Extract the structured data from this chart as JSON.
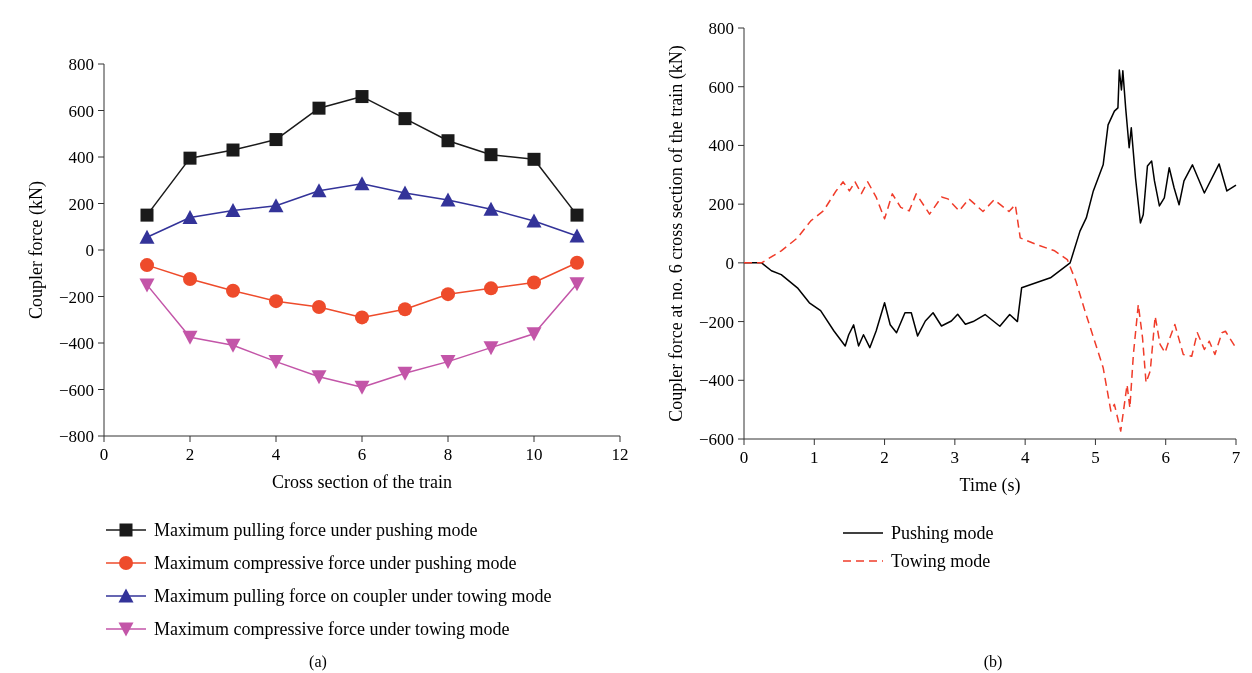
{
  "chart_data": [
    {
      "type": "line",
      "xlabel": "Cross section of the train",
      "ylabel": "Coupler force (kN)",
      "annotations": [
        "(a)"
      ],
      "x": [
        1,
        2,
        3,
        4,
        5,
        6,
        7,
        8,
        9,
        10,
        11
      ],
      "xlim": [
        0,
        12
      ],
      "xticks": [
        0,
        2,
        4,
        6,
        8,
        10,
        12
      ],
      "ylim": [
        -800,
        800
      ],
      "yticks": [
        {
          "value": -800,
          "label": "−800"
        },
        {
          "value": -600,
          "label": "−600"
        },
        {
          "value": -400,
          "label": "−400"
        },
        {
          "value": -200,
          "label": "−200"
        },
        0,
        200,
        400,
        600,
        800
      ],
      "legend": "bottom",
      "grid": false,
      "series": [
        {
          "name": "Maximum pulling force under pushing mode",
          "color": "#1a1a1a",
          "marker": "square",
          "values": [
            150,
            395,
            430,
            475,
            610,
            660,
            565,
            470,
            410,
            390,
            150
          ]
        },
        {
          "name": "Maximum compressive force under pushing mode",
          "color": "#ee4b2b",
          "marker": "circle",
          "values": [
            -65,
            -125,
            -175,
            -220,
            -245,
            -290,
            -255,
            -190,
            -165,
            -140,
            -55
          ]
        },
        {
          "name": "Maximum pulling force on coupler under towing mode",
          "color": "#333399",
          "marker": "triangle",
          "values": [
            55,
            140,
            170,
            190,
            255,
            285,
            245,
            215,
            175,
            125,
            60
          ]
        },
        {
          "name": "Maximum compressive force under towing mode",
          "color": "#c355a8",
          "marker": "triangle-down",
          "values": [
            -150,
            -375,
            -410,
            -480,
            -545,
            -590,
            -530,
            -480,
            -420,
            -360,
            -145
          ]
        }
      ]
    },
    {
      "type": "line",
      "xlabel": "Time (s)",
      "ylabel": "Coupler force at no. 6 cross section of the train (kN)",
      "annotations": [
        "(b)"
      ],
      "xlim": [
        0,
        7
      ],
      "xticks": [
        0,
        1,
        2,
        3,
        4,
        5,
        6,
        7
      ],
      "ylim": [
        -600,
        800
      ],
      "yticks": [
        {
          "value": -600,
          "label": "−600"
        },
        {
          "value": -400,
          "label": "−400"
        },
        {
          "value": -200,
          "label": "−200"
        },
        0,
        200,
        400,
        600,
        800
      ],
      "legend": "bottom",
      "grid": false,
      "marker": "none",
      "series": [
        {
          "name": "Pushing mode",
          "color": "#000000",
          "line_style": "solid",
          "x": [
            0,
            0.25,
            0.39,
            0.53,
            0.76,
            0.93,
            1.09,
            1.28,
            1.44,
            1.49,
            1.56,
            1.63,
            1.7,
            1.79,
            1.88,
            2.0,
            2.08,
            2.17,
            2.29,
            2.38,
            2.47,
            2.58,
            2.69,
            2.81,
            2.95,
            3.04,
            3.15,
            3.26,
            3.43,
            3.64,
            3.78,
            3.89,
            3.95,
            4.36,
            4.64,
            4.78,
            4.87,
            4.97,
            5.11,
            5.18,
            5.27,
            5.32,
            5.34,
            5.37,
            5.39,
            5.43,
            5.48,
            5.51,
            5.57,
            5.64,
            5.68,
            5.74,
            5.8,
            5.84,
            5.91,
            5.98,
            6.05,
            6.12,
            6.19,
            6.26,
            6.38,
            6.55,
            6.76,
            6.87,
            7.0
          ],
          "values": [
            0,
            0,
            -27,
            -40,
            -85,
            -136,
            -163,
            -232,
            -283,
            -245,
            -211,
            -283,
            -245,
            -289,
            -232,
            -136,
            -211,
            -238,
            -170,
            -170,
            -249,
            -198,
            -170,
            -215,
            -198,
            -175,
            -209,
            -200,
            -176,
            -216,
            -176,
            -200,
            -85,
            -51,
            0,
            108,
            153,
            245,
            334,
            470,
            517,
            528,
            657,
            589,
            654,
            528,
            392,
            460,
            290,
            136,
            164,
            330,
            347,
            279,
            194,
            221,
            324,
            255,
            198,
            279,
            334,
            238,
            337,
            245,
            265
          ]
        },
        {
          "name": "Towing mode",
          "color": "#f03c2a",
          "line_style": "dashed",
          "x": [
            0,
            0.25,
            0.53,
            0.76,
            0.95,
            1.13,
            1.31,
            1.41,
            1.5,
            1.58,
            1.67,
            1.76,
            1.88,
            2.0,
            2.11,
            2.23,
            2.35,
            2.45,
            2.64,
            2.81,
            2.9,
            3.06,
            3.2,
            3.4,
            3.56,
            3.77,
            3.86,
            3.93,
            4.18,
            4.42,
            4.6,
            4.72,
            4.85,
            5.11,
            5.22,
            5.27,
            5.36,
            5.45,
            5.49,
            5.54,
            5.61,
            5.67,
            5.72,
            5.78,
            5.85,
            5.92,
            5.99,
            6.06,
            6.13,
            6.25,
            6.37,
            6.45,
            6.55,
            6.62,
            6.7,
            6.8,
            6.85,
            7.0
          ],
          "values": [
            0,
            0,
            41,
            85,
            143,
            177,
            245,
            276,
            245,
            276,
            236,
            276,
            224,
            150,
            235,
            189,
            177,
            235,
            166,
            224,
            218,
            177,
            218,
            175,
            215,
            175,
            198,
            85,
            61,
            41,
            11,
            -61,
            -163,
            -357,
            -505,
            -482,
            -573,
            -415,
            -494,
            -312,
            -142,
            -255,
            -408,
            -368,
            -182,
            -278,
            -306,
            -255,
            -210,
            -312,
            -318,
            -238,
            -295,
            -267,
            -312,
            -238,
            -233,
            -290
          ]
        }
      ]
    }
  ]
}
